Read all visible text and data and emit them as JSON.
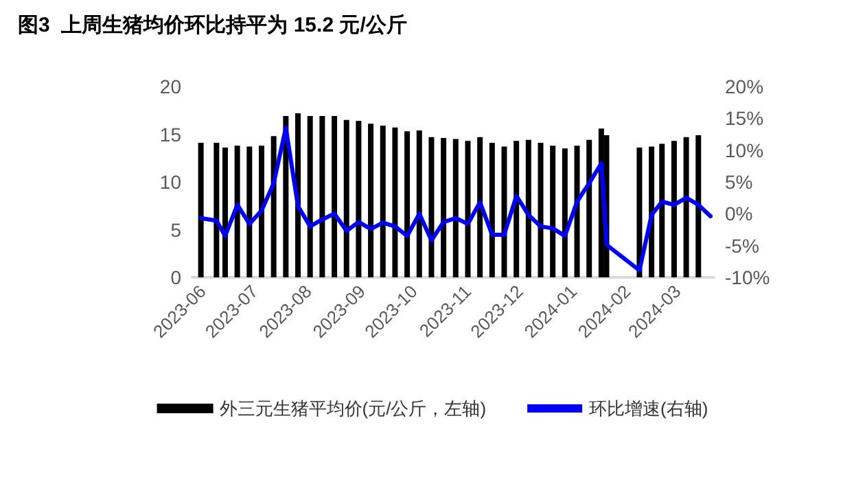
{
  "chart_data": {
    "type": "bar",
    "title": "图3  上周生猪均价环比持平为 15.2 元/公斤",
    "x": [
      "2023-05-31",
      "2023-06-09",
      "2023-06-14",
      "2023-06-21",
      "2023-06-28",
      "2023-07-05",
      "2023-07-12",
      "2023-07-19",
      "2023-07-26",
      "2023-08-02",
      "2023-08-09",
      "2023-08-16",
      "2023-08-23",
      "2023-08-30",
      "2023-09-06",
      "2023-09-13",
      "2023-09-20",
      "2023-09-27",
      "2023-10-04",
      "2023-10-11",
      "2023-10-18",
      "2023-10-25",
      "2023-11-01",
      "2023-11-08",
      "2023-11-15",
      "2023-11-22",
      "2023-11-29",
      "2023-12-06",
      "2023-12-13",
      "2023-12-20",
      "2023-12-27",
      "2024-01-03",
      "2024-01-10",
      "2024-01-17",
      "2024-01-20",
      "2024-02-08",
      "2024-02-15",
      "2024-02-21",
      "2024-02-28",
      "2024-03-06",
      "2024-03-13",
      "2024-03-20"
    ],
    "series": [
      {
        "name": "外三元生猪平均价(元/公斤，左轴)",
        "color": "#000000",
        "values": [
          14.1,
          14.1,
          13.6,
          13.8,
          13.7,
          13.8,
          14.8,
          16.9,
          17.2,
          16.9,
          16.9,
          16.9,
          16.5,
          16.4,
          16.1,
          15.9,
          15.7,
          15.3,
          15.4,
          14.7,
          14.6,
          14.5,
          14.3,
          14.7,
          14.1,
          13.7,
          14.3,
          14.4,
          14.1,
          13.8,
          13.5,
          13.8,
          14.4,
          15.6,
          14.9,
          13.6,
          13.7,
          14.0,
          14.3,
          14.7,
          14.9,
          null
        ]
      },
      {
        "name": "环比增速(右轴)",
        "type": "line",
        "axis": "y2",
        "color": "#0000ff",
        "values": [
          -0.7,
          -1.1,
          -3.5,
          1.4,
          -1.6,
          0.5,
          4.8,
          13.5,
          1.2,
          -2.0,
          -0.9,
          0.0,
          -2.7,
          -1.3,
          -2.4,
          -1.4,
          -2.0,
          -3.5,
          0.0,
          -4.2,
          -1.3,
          -0.7,
          -1.6,
          1.8,
          -3.3,
          -3.3,
          2.8,
          -0.2,
          -2.0,
          -2.3,
          -3.5,
          1.9,
          4.8,
          7.9,
          -4.9,
          -8.9,
          -0.2,
          1.9,
          1.4,
          2.5,
          1.4,
          -0.4
        ]
      }
    ],
    "xlim": [
      "2023-05-26",
      "2024-03-22"
    ],
    "xticks": [
      {
        "value": "2023-06-01",
        "label": "2023-06"
      },
      {
        "value": "2023-07-01",
        "label": "2023-07"
      },
      {
        "value": "2023-08-01",
        "label": "2023-08"
      },
      {
        "value": "2023-09-01",
        "label": "2023-09"
      },
      {
        "value": "2023-10-01",
        "label": "2023-10"
      },
      {
        "value": "2023-11-01",
        "label": "2023-11"
      },
      {
        "value": "2023-12-01",
        "label": "2023-12"
      },
      {
        "value": "2024-01-01",
        "label": "2024-01"
      },
      {
        "value": "2024-02-01",
        "label": "2024-02"
      },
      {
        "value": "2024-03-01",
        "label": "2024-03"
      }
    ],
    "ylim": [
      0,
      20
    ],
    "yticks": [
      0,
      5,
      10,
      15,
      20
    ],
    "y2lim": [
      -10,
      20
    ],
    "y2ticks": [
      {
        "value": -10,
        "label": "-10%"
      },
      {
        "value": -5,
        "label": "-5%"
      },
      {
        "value": 0,
        "label": "0%"
      },
      {
        "value": 5,
        "label": "5%"
      },
      {
        "value": 10,
        "label": "10%"
      },
      {
        "value": 15,
        "label": "15%"
      },
      {
        "value": 20,
        "label": "20%"
      }
    ],
    "legend": "bottom",
    "marker": "none",
    "line_style": "solid"
  }
}
